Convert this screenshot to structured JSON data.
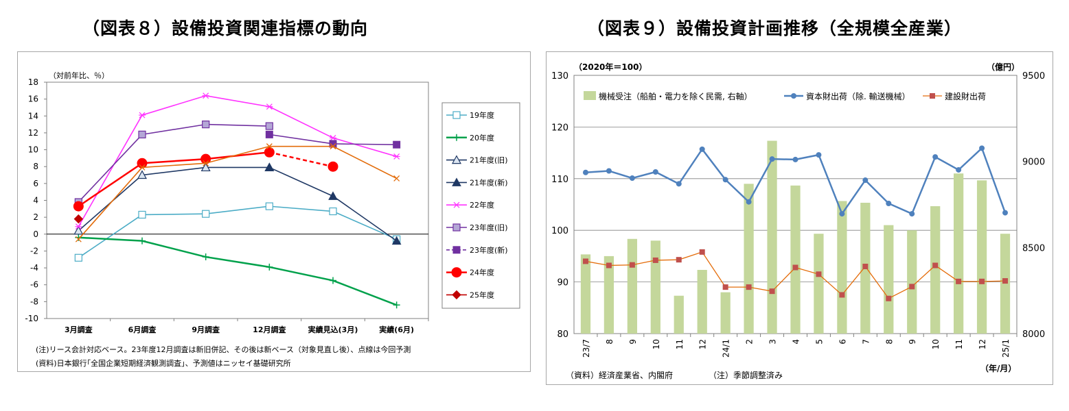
{
  "titles": {
    "chart8": "（図表８）設備投資関連指標の動向",
    "chart9": "（図表９）設備投資計画推移（全規模全産業）"
  },
  "chart8": {
    "unit_label": "（対前年比、％）",
    "note": "(注)リース会計対応ベース。23年度12月調査は新旧併記、その後は新ベース（対象見直し後）、点線は今回予測",
    "source": "(資料)日本銀行｢全国企業短期経済観測調査｣、予測値はニッセイ基礎研究所"
  },
  "chart9": {
    "left_unit": "（2020年＝100）",
    "right_unit": "（億円）",
    "xunit": "（年/月）",
    "source": "（資料）経済産業省、内閣府",
    "note": "（注）季節調整済み"
  },
  "chart_data": [
    {
      "type": "line",
      "categories": [
        "3月調査",
        "6月調査",
        "9月調査",
        "12月調査",
        "実績見込(3月)",
        "実績(6月)"
      ],
      "ylim": [
        -10,
        18
      ],
      "yticks": [
        -10,
        -8,
        -6,
        -4,
        -2,
        0,
        2,
        4,
        6,
        8,
        10,
        12,
        14,
        16,
        18
      ],
      "legend_position": "right",
      "series": [
        {
          "name": "19年度",
          "color": "#4bacc6",
          "marker": "open-square",
          "values": [
            -2.8,
            2.3,
            2.4,
            3.3,
            2.7,
            -0.6
          ]
        },
        {
          "name": "20年度",
          "color": "#00a14b",
          "marker": "plus",
          "values": [
            -0.4,
            -0.8,
            -2.7,
            -3.9,
            -5.5,
            -8.4
          ]
        },
        {
          "name": "21年度(旧)",
          "color": "#1f3864",
          "marker": "open-triangle",
          "values": [
            0.4,
            7.0,
            7.9,
            7.9,
            null,
            null
          ]
        },
        {
          "name": "21年度(新)",
          "color": "#1f3864",
          "marker": "filled-triangle",
          "values": [
            null,
            null,
            null,
            7.9,
            4.5,
            -0.8
          ]
        },
        {
          "name": "22年度",
          "color": "#ff33ff",
          "marker": "star",
          "values": [
            0.9,
            14.1,
            16.4,
            15.1,
            11.4,
            9.2
          ]
        },
        {
          "name": "23年度(旧)",
          "color": "#7030a0",
          "marker": "open-square-filled-light",
          "values": [
            3.8,
            11.8,
            13.0,
            12.8,
            null,
            null
          ]
        },
        {
          "name": "23年度(新)",
          "color": "#7030a0",
          "marker": "filled-square",
          "values": [
            null,
            null,
            null,
            11.8,
            10.7,
            10.6
          ]
        },
        {
          "name": "24年度",
          "color": "#ff0000",
          "marker": "circle",
          "values": [
            3.3,
            8.4,
            8.9,
            9.7,
            8.0,
            null
          ],
          "dashed_from_index": 3
        },
        {
          "name": "25年度",
          "color": "#c00000",
          "marker": "diamond",
          "values": [
            1.8,
            null,
            null,
            null,
            null,
            null
          ]
        },
        {
          "name": "",
          "color": "#e36c0a",
          "marker": "x",
          "values": [
            -0.6,
            7.9,
            8.4,
            10.4,
            10.4,
            6.6
          ]
        }
      ]
    },
    {
      "type": "bar",
      "categories": [
        "23/7",
        "8",
        "9",
        "10",
        "11",
        "12",
        "24/1",
        "2",
        "3",
        "4",
        "5",
        "6",
        "7",
        "8",
        "9",
        "10",
        "11",
        "12",
        "25/1"
      ],
      "ylim": [
        80,
        130
      ],
      "yticks": [
        80,
        90,
        100,
        110,
        120,
        130
      ],
      "y2lim": [
        8000,
        9500
      ],
      "y2ticks": [
        8000,
        8500,
        9000,
        9500
      ],
      "legend_position": "top",
      "series": [
        {
          "name": "機械受注（船舶・電力を除く民需, 右軸）",
          "type": "bar",
          "axis": "right",
          "color": "#c4d79b",
          "values": [
            8460,
            8450,
            8550,
            8540,
            8220,
            8370,
            8240,
            8870,
            9120,
            8860,
            8580,
            8770,
            8760,
            8630,
            8600,
            8740,
            8930,
            8890,
            8580
          ]
        },
        {
          "name": "資本財出荷（除. 輸送機械）",
          "type": "line",
          "axis": "left",
          "color": "#4f81bd",
          "values": [
            111.2,
            111.5,
            110.1,
            111.3,
            109.0,
            115.7,
            109.8,
            105.5,
            113.8,
            113.7,
            114.6,
            103.2,
            109.7,
            105.2,
            103.2,
            114.2,
            111.7,
            115.9,
            103.4
          ]
        },
        {
          "name": "建設財出荷",
          "type": "line",
          "axis": "left",
          "color": "#c0504d",
          "line_color": "#e46c0a",
          "values": [
            94.0,
            93.2,
            93.3,
            94.2,
            94.3,
            95.8,
            89.0,
            89.0,
            88.2,
            92.8,
            91.5,
            87.5,
            93.0,
            86.8,
            89.1,
            93.2,
            90.1,
            90.1,
            90.2
          ]
        }
      ]
    }
  ]
}
